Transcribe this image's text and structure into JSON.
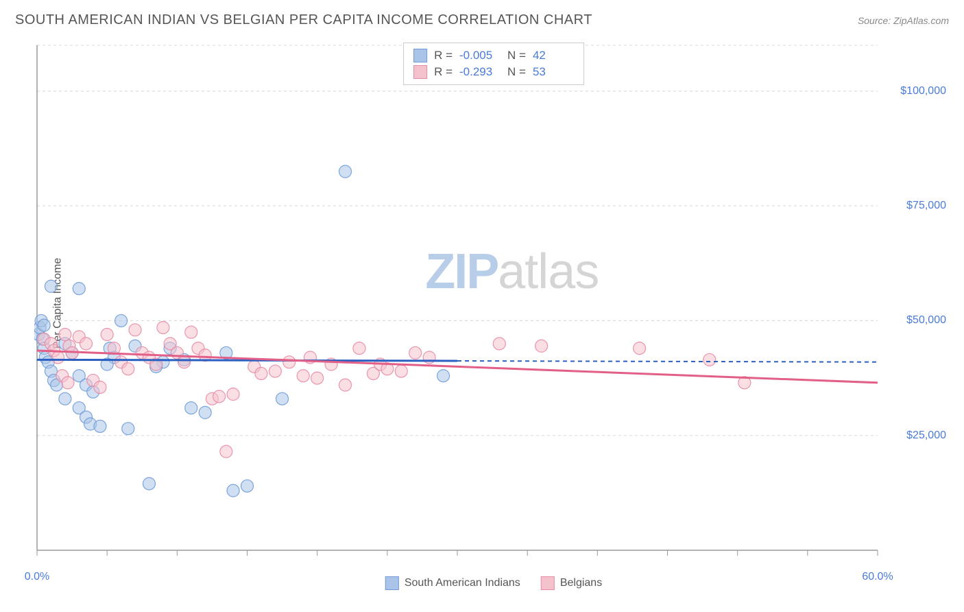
{
  "header": {
    "title": "SOUTH AMERICAN INDIAN VS BELGIAN PER CAPITA INCOME CORRELATION CHART",
    "source": "Source: ZipAtlas.com"
  },
  "watermark": {
    "part1": "ZIP",
    "part2": "atlas"
  },
  "chart": {
    "type": "scatter",
    "y_axis_label": "Per Capita Income",
    "xlim": [
      0,
      60
    ],
    "ylim": [
      0,
      110000
    ],
    "x_ticks": [
      0,
      5,
      10,
      15,
      20,
      25,
      30,
      35,
      40,
      45,
      50,
      55,
      60
    ],
    "x_tick_labels": {
      "0": "0.0%",
      "60": "60.0%"
    },
    "y_ticks": [
      25000,
      50000,
      75000,
      100000,
      110000
    ],
    "y_tick_labels": {
      "25000": "$25,000",
      "50000": "$50,000",
      "75000": "$75,000",
      "100000": "$100,000"
    },
    "grid_color": "#d8d8d8",
    "grid_dash": "4,4",
    "axis_color": "#999999",
    "background_color": "#ffffff",
    "marker_radius": 9,
    "marker_opacity": 0.55,
    "marker_stroke_opacity": 0.9,
    "label_color": "#4a7bd8",
    "label_fontsize": 16,
    "series": [
      {
        "name": "South American Indians",
        "color_fill": "#a9c4e8",
        "color_stroke": "#6f9bd8",
        "trend_color": "#2b5fc1",
        "trend_y_start": 41500,
        "trend_y_end": 41000,
        "trend_x_end": 30,
        "trend_dash_after": true,
        "R": "-0.005",
        "N": "42",
        "points": [
          [
            0.1,
            47000
          ],
          [
            0.2,
            48500
          ],
          [
            0.3,
            50000
          ],
          [
            0.4,
            46000
          ],
          [
            0.5,
            44000
          ],
          [
            0.6,
            42000
          ],
          [
            0.8,
            41000
          ],
          [
            1.0,
            39000
          ],
          [
            1.2,
            37000
          ],
          [
            1.4,
            36000
          ],
          [
            1.0,
            57500
          ],
          [
            3.0,
            57000
          ],
          [
            0.5,
            49000
          ],
          [
            2.0,
            45000
          ],
          [
            2.5,
            43000
          ],
          [
            5.2,
            44000
          ],
          [
            6.0,
            50000
          ],
          [
            5.5,
            42000
          ],
          [
            5.0,
            40500
          ],
          [
            3.0,
            38000
          ],
          [
            3.5,
            36000
          ],
          [
            4.0,
            34500
          ],
          [
            3.0,
            31000
          ],
          [
            3.5,
            29000
          ],
          [
            3.8,
            27500
          ],
          [
            4.5,
            27000
          ],
          [
            6.5,
            26500
          ],
          [
            8.0,
            14500
          ],
          [
            11.0,
            31000
          ],
          [
            12.0,
            30000
          ],
          [
            13.5,
            43000
          ],
          [
            14.0,
            13000
          ],
          [
            15.0,
            14000
          ],
          [
            17.5,
            33000
          ],
          [
            9.0,
            41000
          ],
          [
            9.5,
            44000
          ],
          [
            22.0,
            82500
          ],
          [
            29.0,
            38000
          ],
          [
            10.5,
            41500
          ],
          [
            8.5,
            40000
          ],
          [
            7.0,
            44500
          ],
          [
            2.0,
            33000
          ]
        ]
      },
      {
        "name": "Belgians",
        "color_fill": "#f4c2cd",
        "color_stroke": "#e88ba3",
        "trend_color": "#e26088",
        "trend_y_start": 43500,
        "trend_y_end": 36500,
        "trend_x_end": 60,
        "trend_dash_after": false,
        "R": "-0.293",
        "N": "53",
        "points": [
          [
            0.5,
            46000
          ],
          [
            1.0,
            45000
          ],
          [
            1.2,
            43500
          ],
          [
            1.5,
            42000
          ],
          [
            2.0,
            47000
          ],
          [
            2.3,
            44500
          ],
          [
            2.5,
            43000
          ],
          [
            3.0,
            46500
          ],
          [
            3.5,
            45000
          ],
          [
            4.0,
            37000
          ],
          [
            4.5,
            35500
          ],
          [
            5.0,
            47000
          ],
          [
            5.5,
            44000
          ],
          [
            6.0,
            41000
          ],
          [
            6.5,
            39500
          ],
          [
            7.0,
            48000
          ],
          [
            7.5,
            43000
          ],
          [
            8.0,
            42000
          ],
          [
            8.5,
            40500
          ],
          [
            9.0,
            48500
          ],
          [
            9.5,
            45000
          ],
          [
            10.0,
            43000
          ],
          [
            10.5,
            41000
          ],
          [
            11.0,
            47500
          ],
          [
            11.5,
            44000
          ],
          [
            12.0,
            42500
          ],
          [
            12.5,
            33000
          ],
          [
            13.0,
            33500
          ],
          [
            13.5,
            21500
          ],
          [
            14.0,
            34000
          ],
          [
            17.0,
            39000
          ],
          [
            18.0,
            41000
          ],
          [
            19.0,
            38000
          ],
          [
            19.5,
            42000
          ],
          [
            20.0,
            37500
          ],
          [
            21.0,
            40500
          ],
          [
            22.0,
            36000
          ],
          [
            23.0,
            44000
          ],
          [
            24.0,
            38500
          ],
          [
            24.5,
            40500
          ],
          [
            25.0,
            39500
          ],
          [
            26.0,
            39000
          ],
          [
            27.0,
            43000
          ],
          [
            28.0,
            42000
          ],
          [
            33.0,
            45000
          ],
          [
            36.0,
            44500
          ],
          [
            43.0,
            44000
          ],
          [
            48.0,
            41500
          ],
          [
            50.5,
            36500
          ],
          [
            15.5,
            40000
          ],
          [
            16.0,
            38500
          ],
          [
            1.8,
            38000
          ],
          [
            2.2,
            36500
          ]
        ]
      }
    ],
    "stats_legend": {
      "R_label": "R =",
      "N_label": "N ="
    },
    "bottom_legend_labels": [
      "South American Indians",
      "Belgians"
    ]
  }
}
